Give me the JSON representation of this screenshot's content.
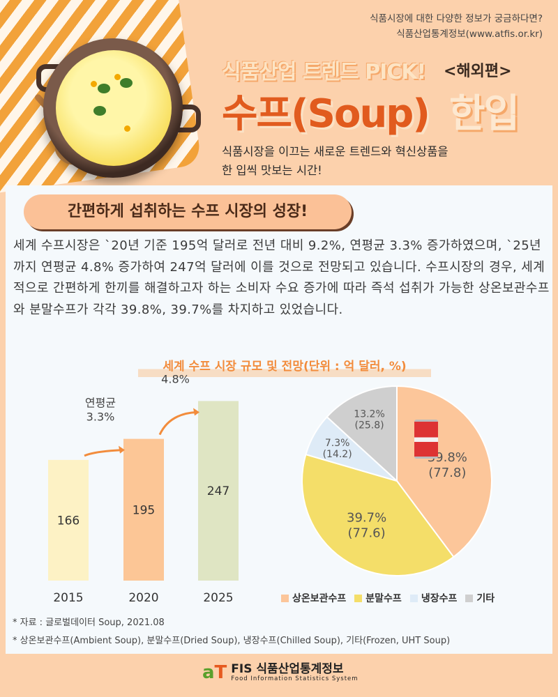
{
  "header": {
    "top_note_line1": "식품시장에 대한 다양한 정보가 궁금하다면?",
    "top_note_line2": "식품산업통계정보(www.atfis.or.kr)",
    "trend_title": "식품산업 트렌드 PICK!",
    "region_tag": "<해외편>",
    "main_title": "수프(Soup)",
    "main_title_tail": "한입",
    "subtitle_line1": "식품시장을 이끄는 새로운 트렌드와 혁신상품을",
    "subtitle_line2": "한 입씩 맛보는 시간!"
  },
  "section": {
    "heading": "간편하게 섭취하는 수프 시장의 성장!",
    "paragraph": "  세계 수프시장은 `20년 기준 195억 달러로 전년 대비 9.2%, 연평균 3.3% 증가하였으며, `25년까지 연평균 4.8% 증가하여 247억 달러에 이를 것으로 전망되고 있습니다. 수프시장의 경우, 세계적으로 간편하게 한끼를 해결하고자 하는 소비자 수요 증가에 따라 즉석 섭취가 가능한 상온보관수프와 분말수프가 각각 39.8%, 39.7%를 차지하고 있었습니다."
  },
  "chart_title": "세계 수프 시장 규모 및 전망(단위 : 억 달러, %)",
  "chart_data": [
    {
      "type": "bar",
      "categories": [
        "2015",
        "2020",
        "2025"
      ],
      "values": [
        166,
        195,
        247
      ],
      "colors": [
        "#fdf2c5",
        "#fcc696",
        "#dfe5c3"
      ],
      "annotations": [
        {
          "line1": "연평균",
          "line2": "3.3%",
          "from": "2015",
          "to": "2020"
        },
        {
          "line1": "연평균",
          "line2": "4.8%",
          "from": "2020",
          "to": "2025"
        }
      ],
      "grid": false
    },
    {
      "type": "pie",
      "slices": [
        {
          "name": "상온보관수프",
          "percent": 39.8,
          "value": 77.8,
          "color": "#fcc69a",
          "pct_label": "39.8%",
          "val_label": "(77.8)"
        },
        {
          "name": "분말수프",
          "percent": 39.7,
          "value": 77.6,
          "color": "#f4de69",
          "pct_label": "39.7%",
          "val_label": "(77.6)"
        },
        {
          "name": "냉장수프",
          "percent": 7.3,
          "value": 14.2,
          "color": "#deebf7",
          "pct_label": "7.3%",
          "val_label": "(14.2)"
        },
        {
          "name": "기타",
          "percent": 13.2,
          "value": 25.8,
          "color": "#cfcfcf",
          "pct_label": "13.2%",
          "val_label": "(25.8)"
        }
      ],
      "legend_position": "bottom"
    }
  ],
  "footnotes": {
    "source": "* 자료 :  글로벌데이터 Soup, 2021.08",
    "note": "* 상온보관수프(Ambient Soup), 분말수프(Dried Soup), 냉장수프(Chilled Soup), 기타(Frozen, UHT Soup)"
  },
  "footer": {
    "logo_mark_a": "a",
    "logo_mark_t": "T",
    "logo_name": "FIS 식품산업통계정보",
    "logo_sub": "Food Information Statistics System"
  },
  "colors": {
    "background": "#fcd1ac",
    "title_orange": "#e15b1e",
    "arrow": "#f28c3c"
  }
}
